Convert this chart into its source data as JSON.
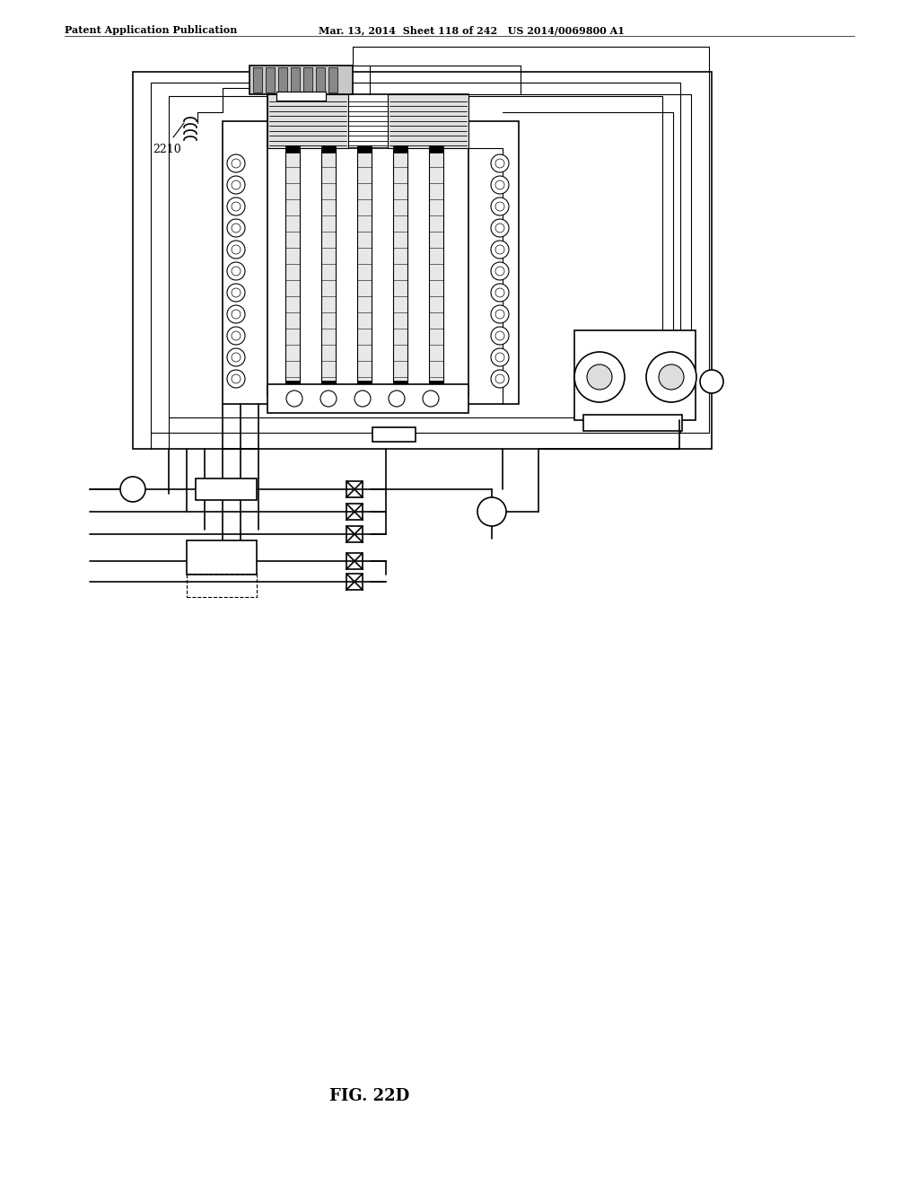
{
  "title_left": "Patent Application Publication",
  "title_right": "Mar. 13, 2014  Sheet 118 of 242   US 2014/0069800 A1",
  "fig_label": "FIG. 22D",
  "label_2210": "2210",
  "bg_color": "#ffffff",
  "line_color": "#000000",
  "lw_thin": 0.8,
  "lw_medium": 1.2,
  "lw_thick": 2.0
}
